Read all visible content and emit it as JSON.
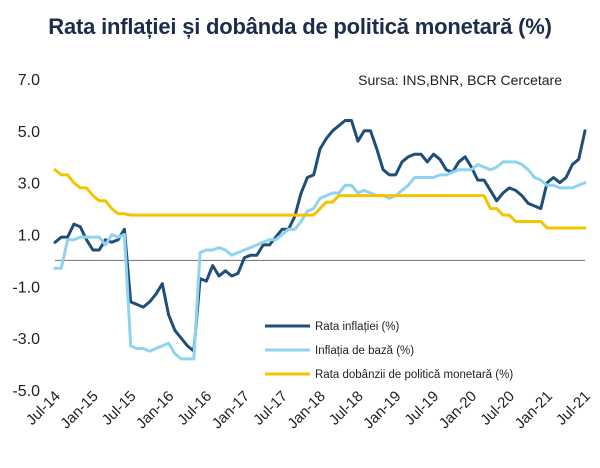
{
  "chart_data": {
    "type": "line",
    "title": "Rata inflației și dobânda de politică monetară (%)",
    "source": "Sursa: INS,BNR, BCR Cercetare",
    "xlabel": "",
    "ylabel": "",
    "ylim": [
      -5.0,
      7.0
    ],
    "yticks": [
      "7.0",
      "5.0",
      "3.0",
      "1.0",
      "-1.0",
      "-3.0",
      "-5.0"
    ],
    "ytick_values": [
      7,
      5,
      3,
      1,
      -1,
      -3,
      -5
    ],
    "xticks": [
      "Jul-14",
      "Jan-15",
      "Jul-15",
      "Jan-16",
      "Jul-16",
      "Jan-17",
      "Jul-17",
      "Jan-18",
      "Jul-18",
      "Jan-19",
      "Jul-19",
      "Jan-20",
      "Jul-20",
      "Jan-21",
      "Jul-21"
    ],
    "x": [
      "Jul-14",
      "Aug-14",
      "Sep-14",
      "Oct-14",
      "Nov-14",
      "Dec-14",
      "Jan-15",
      "Feb-15",
      "Mar-15",
      "Apr-15",
      "May-15",
      "Jun-15",
      "Jul-15",
      "Aug-15",
      "Sep-15",
      "Oct-15",
      "Nov-15",
      "Dec-15",
      "Jan-16",
      "Feb-16",
      "Mar-16",
      "Apr-16",
      "May-16",
      "Jun-16",
      "Jul-16",
      "Aug-16",
      "Sep-16",
      "Oct-16",
      "Nov-16",
      "Dec-16",
      "Jan-17",
      "Feb-17",
      "Mar-17",
      "Apr-17",
      "May-17",
      "Jun-17",
      "Jul-17",
      "Aug-17",
      "Sep-17",
      "Oct-17",
      "Nov-17",
      "Dec-17",
      "Jan-18",
      "Feb-18",
      "Mar-18",
      "Apr-18",
      "May-18",
      "Jun-18",
      "Jul-18",
      "Aug-18",
      "Sep-18",
      "Oct-18",
      "Nov-18",
      "Dec-18",
      "Jan-19",
      "Feb-19",
      "Mar-19",
      "Apr-19",
      "May-19",
      "Jun-19",
      "Jul-19",
      "Aug-19",
      "Sep-19",
      "Oct-19",
      "Nov-19",
      "Dec-19",
      "Jan-20",
      "Feb-20",
      "Mar-20",
      "Apr-20",
      "May-20",
      "Jun-20",
      "Jul-20",
      "Aug-20",
      "Sep-20",
      "Oct-20",
      "Nov-20",
      "Dec-20",
      "Jan-21",
      "Feb-21",
      "Mar-21",
      "Apr-21",
      "May-21",
      "Jun-21",
      "Jul-21"
    ],
    "grid": false,
    "legend_position": "bottom-right",
    "series": [
      {
        "name": "Rata inflației (%)",
        "color": "#1f4e79",
        "values": [
          0.7,
          0.9,
          0.9,
          1.4,
          1.3,
          0.8,
          0.4,
          0.4,
          0.8,
          0.7,
          0.8,
          1.2,
          -1.6,
          -1.7,
          -1.8,
          -1.6,
          -1.3,
          -0.9,
          -2.1,
          -2.7,
          -3.0,
          -3.3,
          -3.5,
          -0.7,
          -0.8,
          -0.2,
          -0.6,
          -0.4,
          -0.6,
          -0.5,
          0.1,
          0.2,
          0.2,
          0.6,
          0.6,
          0.9,
          1.2,
          1.2,
          1.7,
          2.6,
          3.2,
          3.3,
          4.3,
          4.7,
          5.0,
          5.2,
          5.4,
          5.4,
          4.6,
          5.0,
          5.0,
          4.3,
          3.5,
          3.3,
          3.3,
          3.8,
          4.0,
          4.1,
          4.1,
          3.8,
          4.1,
          3.9,
          3.5,
          3.4,
          3.8,
          4.0,
          3.6,
          3.1,
          3.1,
          2.7,
          2.3,
          2.6,
          2.8,
          2.7,
          2.5,
          2.2,
          2.1,
          2.0,
          3.0,
          3.2,
          3.0,
          3.2,
          3.7,
          3.9,
          5.0
        ]
      },
      {
        "name": "Inflația de bază (%)",
        "color": "#8fd3ef",
        "values": [
          -0.3,
          -0.3,
          0.8,
          0.8,
          0.9,
          0.9,
          0.9,
          0.9,
          0.6,
          1.0,
          0.9,
          1.0,
          -3.3,
          -3.4,
          -3.4,
          -3.5,
          -3.4,
          -3.3,
          -3.2,
          -3.6,
          -3.8,
          -3.8,
          -3.8,
          0.3,
          0.4,
          0.4,
          0.5,
          0.4,
          0.2,
          0.3,
          0.4,
          0.5,
          0.6,
          0.7,
          0.8,
          0.8,
          1.0,
          1.2,
          1.2,
          1.5,
          1.9,
          2.0,
          2.4,
          2.5,
          2.6,
          2.6,
          2.9,
          2.9,
          2.6,
          2.7,
          2.6,
          2.5,
          2.5,
          2.4,
          2.5,
          2.7,
          2.9,
          3.2,
          3.2,
          3.2,
          3.2,
          3.3,
          3.3,
          3.4,
          3.5,
          3.5,
          3.5,
          3.7,
          3.6,
          3.5,
          3.6,
          3.8,
          3.8,
          3.8,
          3.7,
          3.5,
          3.2,
          3.1,
          2.9,
          2.9,
          2.8,
          2.8,
          2.8,
          2.9,
          3.0
        ]
      },
      {
        "name": "Rata dobânzii de politică monetară (%)",
        "color": "#f5c400",
        "values": [
          3.5,
          3.3,
          3.3,
          3.0,
          2.8,
          2.8,
          2.5,
          2.3,
          2.3,
          2.0,
          1.8,
          1.8,
          1.75,
          1.75,
          1.75,
          1.75,
          1.75,
          1.75,
          1.75,
          1.75,
          1.75,
          1.75,
          1.75,
          1.75,
          1.75,
          1.75,
          1.75,
          1.75,
          1.75,
          1.75,
          1.75,
          1.75,
          1.75,
          1.75,
          1.75,
          1.75,
          1.75,
          1.75,
          1.75,
          1.75,
          1.75,
          1.75,
          2.0,
          2.25,
          2.25,
          2.5,
          2.5,
          2.5,
          2.5,
          2.5,
          2.5,
          2.5,
          2.5,
          2.5,
          2.5,
          2.5,
          2.5,
          2.5,
          2.5,
          2.5,
          2.5,
          2.5,
          2.5,
          2.5,
          2.5,
          2.5,
          2.5,
          2.5,
          2.5,
          2.0,
          2.0,
          1.75,
          1.75,
          1.5,
          1.5,
          1.5,
          1.5,
          1.5,
          1.25,
          1.25,
          1.25,
          1.25,
          1.25,
          1.25,
          1.25
        ]
      }
    ]
  }
}
